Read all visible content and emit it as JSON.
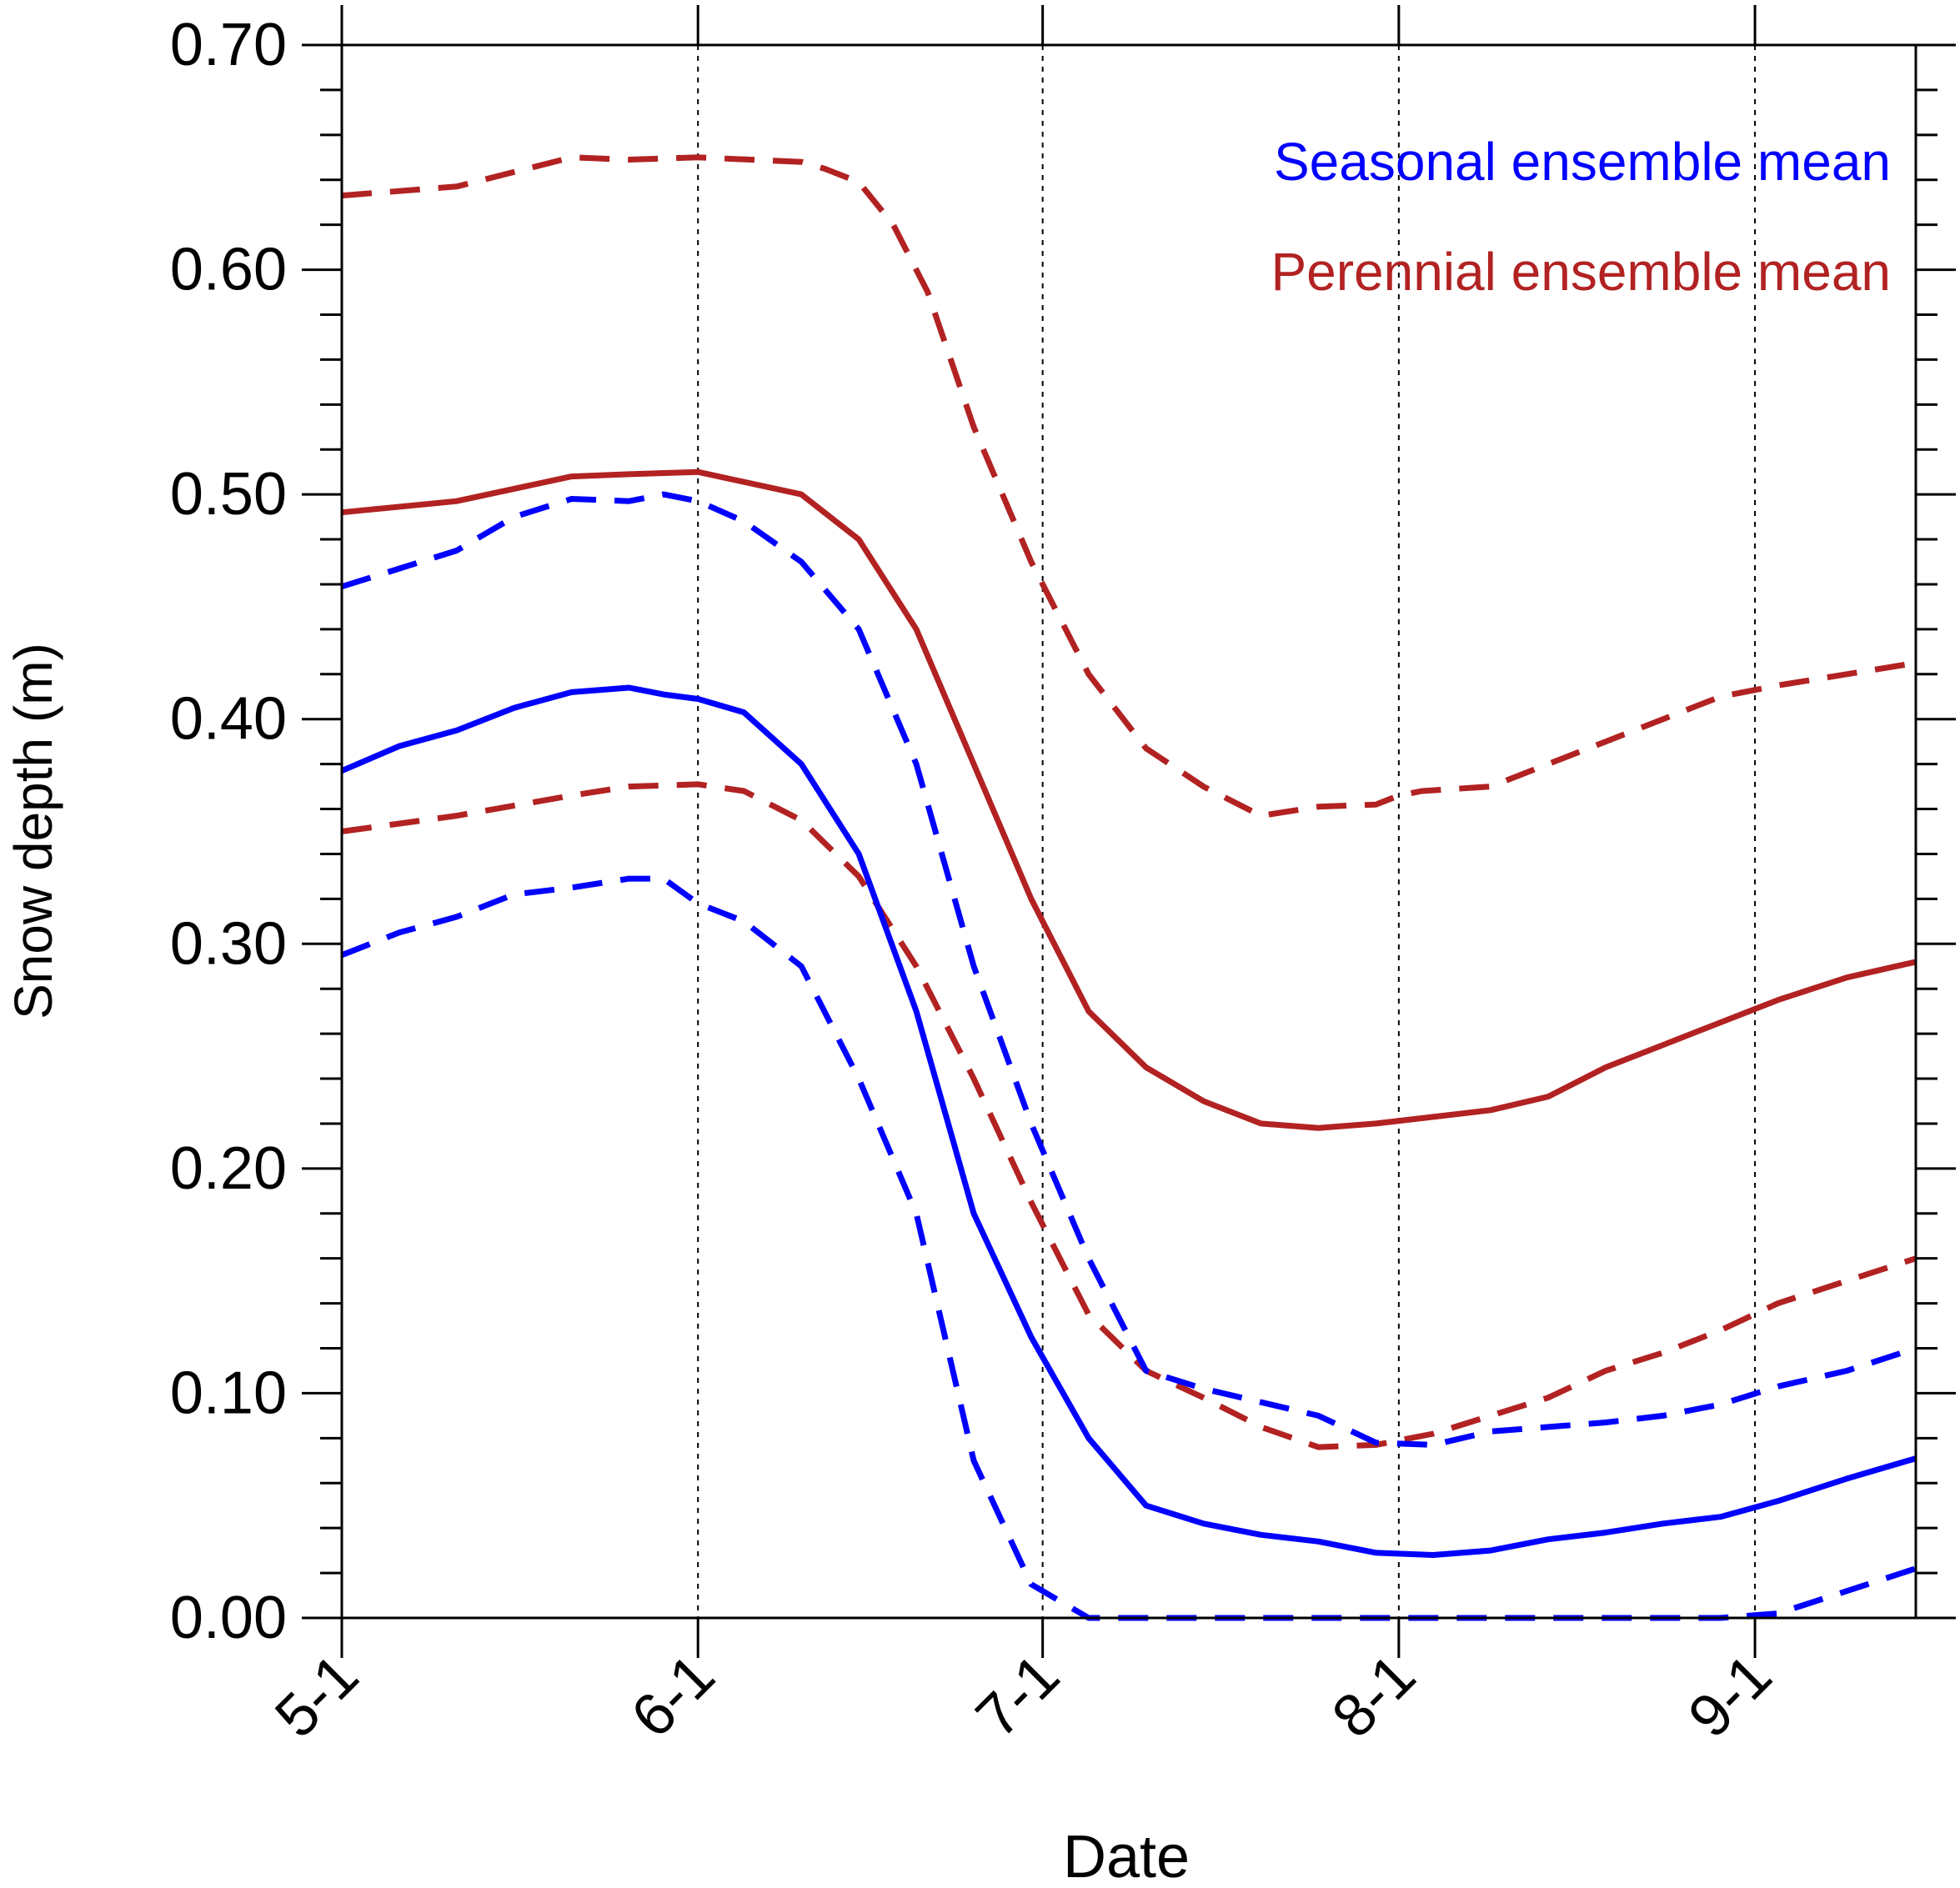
{
  "chart_data": {
    "type": "line",
    "title": "",
    "xlabel": "Date",
    "ylabel": "Snow depth (m)",
    "x_ticks": [
      "5-1",
      "6-1",
      "7-1",
      "8-1",
      "9-1"
    ],
    "x_range_days": [
      0,
      137
    ],
    "ylim": [
      0,
      0.7
    ],
    "y_ticks": [
      "0.00",
      "0.10",
      "0.20",
      "0.30",
      "0.40",
      "0.50",
      "0.60",
      "0.70"
    ],
    "grid": "vertical dotted lines at month ticks",
    "legend_placement": "top-right",
    "legend": [
      {
        "label": "Seasonal ensemble mean",
        "color": "#0000ff"
      },
      {
        "label": "Perennial ensemble mean",
        "color": "#b22222"
      }
    ],
    "series": [
      {
        "group": "perennial",
        "style": "dashed",
        "color": "#b22222",
        "x": [
          0,
          10,
          20,
          25,
          31,
          40,
          42,
          45,
          48,
          51,
          55,
          60,
          65,
          70,
          75,
          80,
          85,
          90,
          92,
          94,
          100,
          110,
          115,
          120,
          125,
          131,
          137
        ],
        "y": [
          0.633,
          0.637,
          0.65,
          0.649,
          0.65,
          0.648,
          0.645,
          0.639,
          0.62,
          0.59,
          0.53,
          0.47,
          0.42,
          0.387,
          0.37,
          0.357,
          0.361,
          0.362,
          0.366,
          0.368,
          0.37,
          0.39,
          0.4,
          0.41,
          0.415,
          0.42,
          0.425
        ]
      },
      {
        "group": "perennial",
        "style": "solid",
        "color": "#b22222",
        "x": [
          0,
          10,
          20,
          25,
          31,
          40,
          45,
          50,
          55,
          60,
          65,
          70,
          75,
          80,
          85,
          90,
          95,
          100,
          105,
          110,
          115,
          120,
          125,
          131,
          137
        ],
        "y": [
          0.492,
          0.497,
          0.508,
          0.509,
          0.51,
          0.5,
          0.48,
          0.44,
          0.38,
          0.32,
          0.27,
          0.245,
          0.23,
          0.22,
          0.218,
          0.22,
          0.223,
          0.226,
          0.232,
          0.245,
          0.255,
          0.265,
          0.275,
          0.285,
          0.292
        ]
      },
      {
        "group": "perennial",
        "style": "dashed",
        "color": "#b22222",
        "x": [
          0,
          10,
          20,
          25,
          31,
          35,
          40,
          45,
          50,
          55,
          60,
          65,
          70,
          75,
          80,
          85,
          90,
          95,
          100,
          105,
          110,
          115,
          120,
          125,
          131,
          137
        ],
        "y": [
          0.35,
          0.357,
          0.366,
          0.37,
          0.371,
          0.368,
          0.355,
          0.33,
          0.29,
          0.24,
          0.185,
          0.135,
          0.11,
          0.098,
          0.085,
          0.076,
          0.077,
          0.082,
          0.09,
          0.098,
          0.11,
          0.118,
          0.128,
          0.14,
          0.15,
          0.16
        ]
      },
      {
        "group": "seasonal",
        "style": "dashed",
        "color": "#0000ff",
        "x": [
          0,
          5,
          10,
          15,
          20,
          25,
          28,
          31,
          35,
          40,
          45,
          50,
          55,
          60,
          65,
          70,
          75,
          80,
          85,
          90,
          95,
          100,
          105,
          110,
          115,
          120,
          125,
          131,
          137
        ],
        "y": [
          0.459,
          0.467,
          0.475,
          0.49,
          0.498,
          0.497,
          0.5,
          0.497,
          0.488,
          0.47,
          0.44,
          0.38,
          0.29,
          0.22,
          0.16,
          0.11,
          0.102,
          0.096,
          0.09,
          0.078,
          0.077,
          0.083,
          0.085,
          0.087,
          0.09,
          0.095,
          0.103,
          0.11,
          0.12
        ]
      },
      {
        "group": "seasonal",
        "style": "solid",
        "color": "#0000ff",
        "x": [
          0,
          5,
          10,
          15,
          20,
          25,
          28,
          31,
          35,
          40,
          45,
          50,
          55,
          60,
          65,
          70,
          75,
          80,
          85,
          90,
          95,
          100,
          105,
          110,
          115,
          120,
          125,
          131,
          137
        ],
        "y": [
          0.377,
          0.388,
          0.395,
          0.405,
          0.412,
          0.414,
          0.411,
          0.409,
          0.403,
          0.38,
          0.34,
          0.27,
          0.18,
          0.125,
          0.08,
          0.05,
          0.042,
          0.037,
          0.034,
          0.029,
          0.028,
          0.03,
          0.035,
          0.038,
          0.042,
          0.045,
          0.052,
          0.062,
          0.071
        ]
      },
      {
        "group": "seasonal",
        "style": "dashed",
        "color": "#0000ff",
        "x": [
          0,
          5,
          10,
          15,
          20,
          25,
          28,
          31,
          35,
          40,
          45,
          50,
          55,
          60,
          65,
          70,
          75,
          80,
          85,
          90,
          95,
          100,
          105,
          110,
          115,
          120,
          125,
          131,
          137
        ],
        "y": [
          0.295,
          0.305,
          0.312,
          0.322,
          0.325,
          0.329,
          0.329,
          0.318,
          0.31,
          0.29,
          0.24,
          0.18,
          0.07,
          0.015,
          0.0,
          0.0,
          0.0,
          0.0,
          0.0,
          0.0,
          0.0,
          0.0,
          0.0,
          0.0,
          0.0,
          0.0,
          0.002,
          0.012,
          0.022
        ]
      }
    ]
  }
}
